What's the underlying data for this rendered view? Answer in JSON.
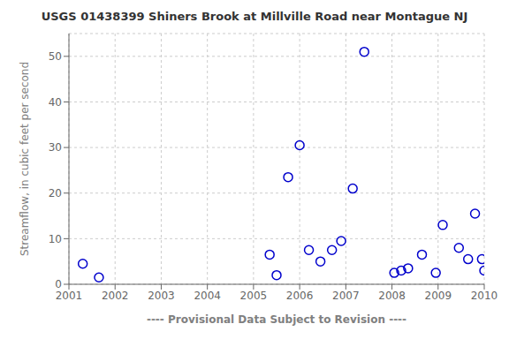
{
  "chart_data": {
    "type": "scatter",
    "title": "USGS 01438399 Shiners Brook at Millville Road near Montague NJ",
    "ylabel": "Streamflow, in cubic feet per second",
    "xlabel": "---- Provisional Data Subject to Revision ----",
    "x": [
      2001.3,
      2001.65,
      2005.35,
      2005.5,
      2005.75,
      2006.0,
      2006.2,
      2006.45,
      2006.7,
      2006.9,
      2007.15,
      2007.4,
      2008.05,
      2008.2,
      2008.35,
      2008.65,
      2008.95,
      2009.1,
      2009.45,
      2009.65,
      2009.8,
      2009.95,
      2010.0
    ],
    "values": [
      4.5,
      1.5,
      6.5,
      2.0,
      23.5,
      30.5,
      7.5,
      5.0,
      7.5,
      9.5,
      21.0,
      51.0,
      2.5,
      3.0,
      3.5,
      6.5,
      2.5,
      13.0,
      8.0,
      5.5,
      15.5,
      5.5,
      3.0
    ],
    "color": "#0000cc",
    "marker": "circle",
    "xlim": [
      2001,
      2010
    ],
    "ylim": [
      0,
      55
    ],
    "xticks": [
      2001,
      2002,
      2003,
      2004,
      2005,
      2006,
      2007,
      2008,
      2009,
      2010
    ],
    "yticks": [
      0,
      10,
      20,
      30,
      40,
      50
    ],
    "grid": true
  }
}
